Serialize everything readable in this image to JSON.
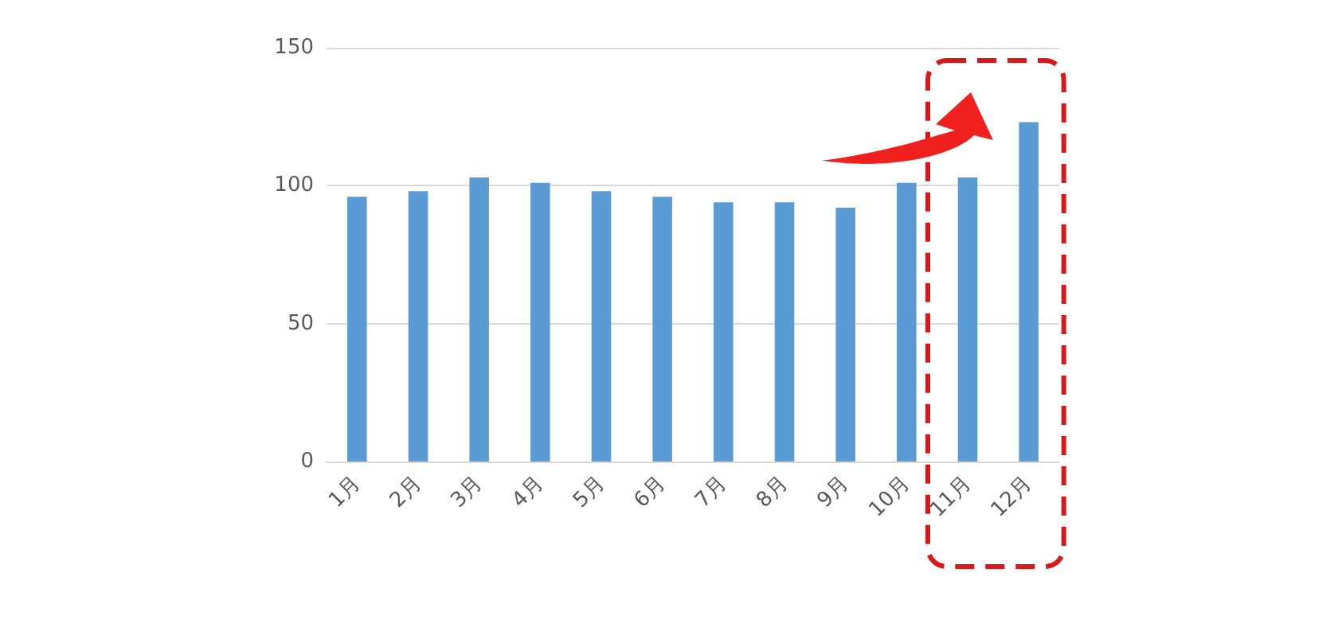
{
  "chart_data": {
    "type": "bar",
    "categories": [
      "1月",
      "2月",
      "3月",
      "4月",
      "5月",
      "6月",
      "7月",
      "8月",
      "9月",
      "10月",
      "11月",
      "12月"
    ],
    "values": [
      96,
      98,
      103,
      101,
      98,
      96,
      94,
      94,
      92,
      101,
      103,
      123
    ],
    "color": "#5b9bd5",
    "ylim": [
      0,
      150
    ],
    "yticks": [
      0,
      50,
      100,
      150
    ],
    "grid": "y"
  }
}
